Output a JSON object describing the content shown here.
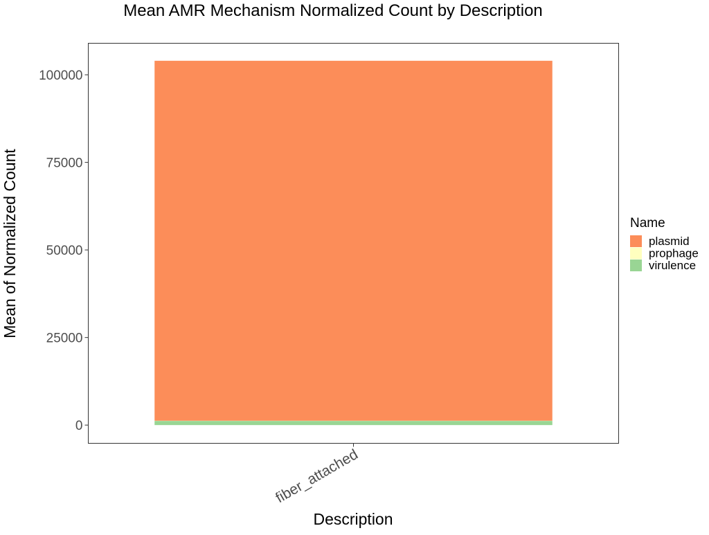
{
  "chart_data": {
    "type": "bar",
    "stacked": true,
    "title": "Mean AMR Mechanism Normalized Count by Description",
    "xlabel": "Description",
    "ylabel": "Mean of Normalized Count",
    "categories": [
      "fiber_attached"
    ],
    "ylim": [
      -5200,
      109000
    ],
    "yticks": [
      0,
      25000,
      50000,
      75000,
      100000
    ],
    "ytick_labels": [
      "0",
      "25000",
      "50000",
      "75000",
      "100000"
    ],
    "series": [
      {
        "name": "virulence",
        "values": [
          1200
        ],
        "color": "#99D594"
      },
      {
        "name": "prophage",
        "values": [
          50
        ],
        "color": "#FFFFBF"
      },
      {
        "name": "plasmid",
        "values": [
          102750
        ],
        "color": "#FC8D59"
      }
    ],
    "legend": {
      "title": "Name",
      "position": "right",
      "entries": [
        {
          "label": "plasmid",
          "color": "#FC8D59"
        },
        {
          "label": "prophage",
          "color": "#FFFFBF"
        },
        {
          "label": "virulence",
          "color": "#99D594"
        }
      ]
    },
    "grid": false
  }
}
